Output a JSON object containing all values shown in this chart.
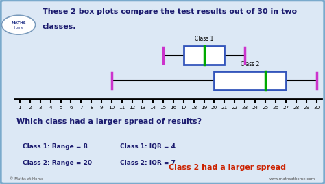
{
  "title_line1": "These 2 box plots compare the test results out of 30 in two",
  "title_line2": "classes.",
  "bg_color": "#dce8f5",
  "border_color": "#7aaacc",
  "class1": {
    "label": "Class 1",
    "min": 15,
    "q1": 17,
    "median": 19,
    "q3": 21,
    "max": 23,
    "box_color": "#3355bb",
    "median_color": "#00aa00",
    "whisker_color": "#cc33cc"
  },
  "class2": {
    "label": "Class 2",
    "min": 10,
    "q1": 20,
    "median": 25,
    "q3": 27,
    "max": 30,
    "box_color": "#3355bb",
    "median_color": "#00aa00",
    "whisker_color": "#cc33cc"
  },
  "axis_min": 1,
  "axis_max": 30,
  "question_text": "Which class had a larger spread of results?",
  "stats_text1": "Class 1: Range = 8",
  "stats_text2": "Class 2: Range = 20",
  "iqr_text1": "Class 1: IQR = 4",
  "iqr_text2": "Class 2: IQR = 7",
  "answer_text": "Class 2 had a larger spread",
  "answer_color": "#cc2200",
  "title_color": "#1a1a6e",
  "question_color": "#1a1a6e",
  "stats_color": "#1a1a6e",
  "footer_left": "© Maths at Home",
  "footer_right": "www.mathsathome.com"
}
